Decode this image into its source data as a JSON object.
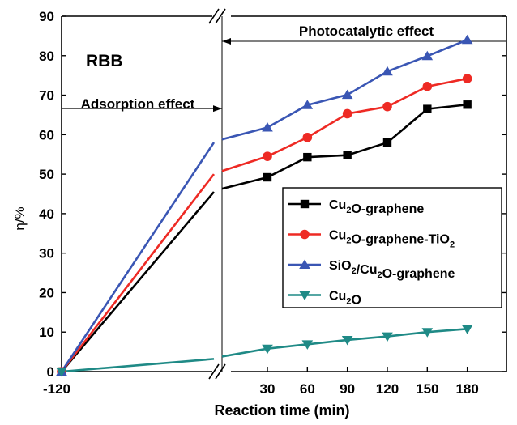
{
  "chart_data": {
    "type": "line",
    "panel_label": "RBB",
    "xlabel": "Reaction time (min)",
    "ylabel": "η/%",
    "ylim": [
      0,
      90
    ],
    "yticks": [
      "0",
      "10",
      "20",
      "30",
      "40",
      "50",
      "60",
      "70",
      "80",
      "90"
    ],
    "xticks": [
      "-120",
      "30",
      "60",
      "90",
      "120",
      "150",
      "180"
    ],
    "annotations": {
      "adsorption": "Adsorption effect",
      "photocatalytic": "Photocatalytic effect"
    },
    "x": [
      30,
      60,
      90,
      120,
      150,
      180
    ],
    "series": [
      {
        "name": "Cu2O-graphene",
        "name_parts": [
          [
            "Cu",
            "n"
          ],
          [
            "2",
            "sub"
          ],
          [
            "O-graphene",
            "n"
          ]
        ],
        "color": "#000000",
        "marker": "square",
        "start": 0,
        "dark_end": 45.5,
        "values": [
          49.2,
          54.3,
          54.8,
          58.0,
          66.5,
          67.6
        ]
      },
      {
        "name": "Cu2O-graphene-TiO2",
        "name_parts": [
          [
            "Cu",
            "n"
          ],
          [
            "2",
            "sub"
          ],
          [
            "O-graphene-TiO",
            "n"
          ],
          [
            "2",
            "sub"
          ]
        ],
        "color": "#ee2a24",
        "marker": "circle",
        "start": 0,
        "dark_end": 50.0,
        "values": [
          54.5,
          59.3,
          65.3,
          67.1,
          72.2,
          74.2
        ]
      },
      {
        "name": "SiO2/Cu2O-graphene",
        "name_parts": [
          [
            "SiO",
            "n"
          ],
          [
            "2",
            "sub"
          ],
          [
            "/Cu",
            "n"
          ],
          [
            "2",
            "sub"
          ],
          [
            "O-graphene",
            "n"
          ]
        ],
        "color": "#3a56b4",
        "marker": "triangle-up",
        "start": 0,
        "dark_end": 58.0,
        "values": [
          61.8,
          67.5,
          70.1,
          76.0,
          79.9,
          84.0
        ]
      },
      {
        "name": "Cu2O",
        "name_parts": [
          [
            "Cu",
            "n"
          ],
          [
            "2",
            "sub"
          ],
          [
            "O",
            "n"
          ]
        ],
        "color": "#1f8a86",
        "marker": "triangle-down",
        "start": 0,
        "dark_end": 3.2,
        "values": [
          5.8,
          6.9,
          8.0,
          8.9,
          10.0,
          10.8
        ]
      }
    ]
  }
}
